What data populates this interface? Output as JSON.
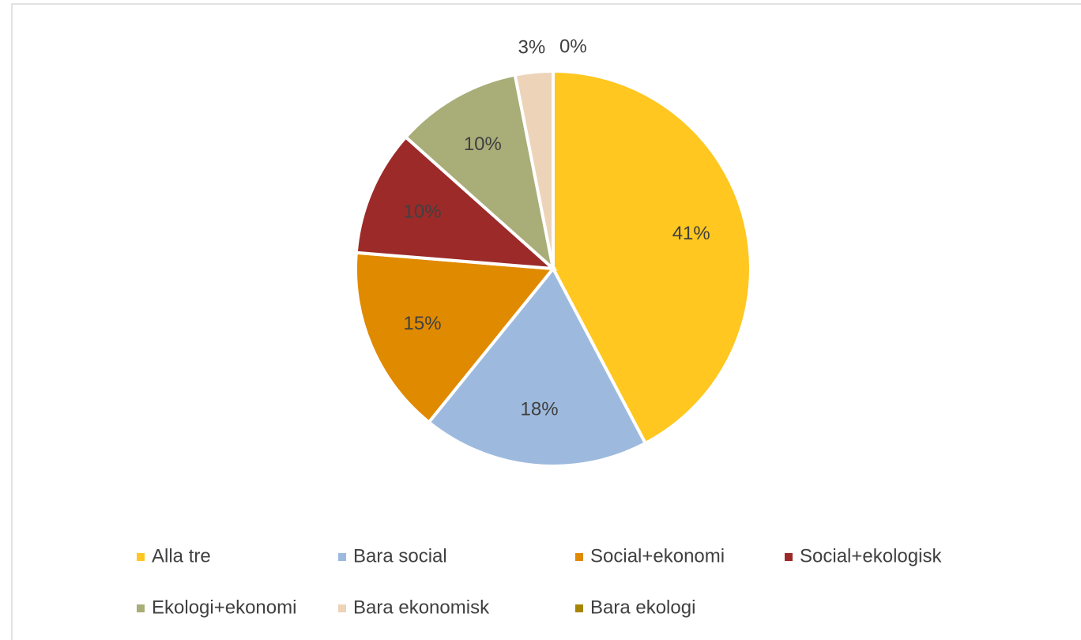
{
  "chart_data": {
    "type": "pie",
    "categories": [
      "Alla tre",
      "Bara social",
      "Social+ekonomi",
      "Social+ekologisk",
      "Ekologi+ekonomi",
      "Bara ekonomisk",
      "Bara ekologi"
    ],
    "values": [
      41,
      18,
      15,
      10,
      10,
      3,
      0
    ],
    "value_labels": [
      "41%",
      "18%",
      "15%",
      "10%",
      "10%",
      "3%",
      "0%"
    ],
    "colors": [
      "#ffc71f",
      "#9dbade",
      "#e08a00",
      "#9c2a29",
      "#a9ad78",
      "#edd3b8",
      "#a68500"
    ],
    "legend": "bottom"
  }
}
